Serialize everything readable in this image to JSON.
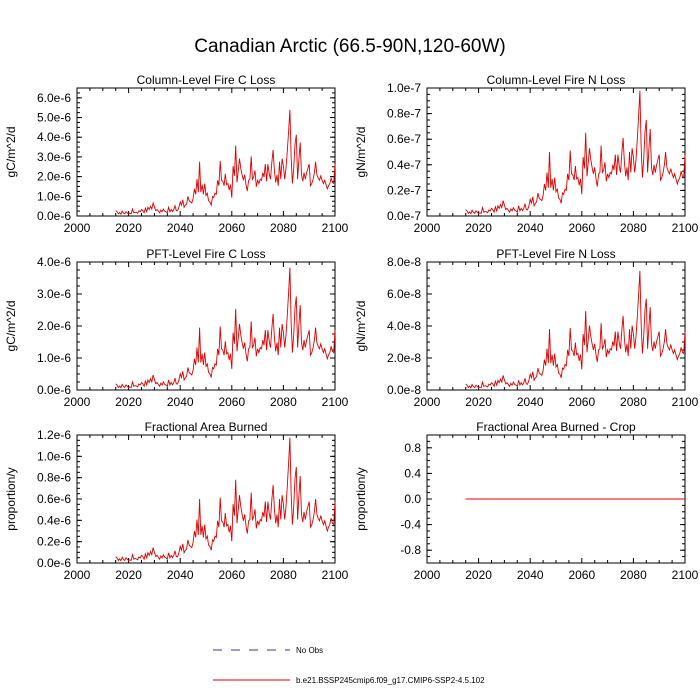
{
  "figure": {
    "title": "Canadian Arctic (66.5-90N,120-60W)",
    "legend": [
      {
        "label": "No Obs",
        "style": "dashed",
        "color": "#3a3a9a"
      },
      {
        "label": "b.e21.BSSP245cmip6.f09_g17.CMIP6-SSP2-4.5.102",
        "style": "solid",
        "color": "#dd0000"
      }
    ]
  },
  "chart_data": [
    {
      "type": "line",
      "title": "Column-Level Fire C Loss",
      "ylabel": "gC/m^2/d",
      "xlim": [
        2000,
        2100
      ],
      "xticks": [
        "2000",
        "2020",
        "2040",
        "2060",
        "2080",
        "2100"
      ],
      "ylim": [
        0,
        6.5e-06
      ],
      "yticks": [
        0,
        1e-06,
        2e-06,
        3e-06,
        4e-06,
        5e-06,
        6e-06
      ],
      "yticklabels": [
        "0.0e-6",
        "1.0e-6",
        "2.0e-6",
        "3.0e-6",
        "4.0e-6",
        "5.0e-6",
        "6.0e-6"
      ],
      "series": [
        {
          "color": "#dd0000",
          "start_year": 2015,
          "scale": 5.5e-06
        }
      ]
    },
    {
      "type": "line",
      "title": "Column-Level Fire N Loss",
      "ylabel": "gN/m^2/d",
      "xlim": [
        2000,
        2100
      ],
      "xticks": [
        "2000",
        "2020",
        "2040",
        "2060",
        "2080",
        "2100"
      ],
      "ylim": [
        0,
        1e-07
      ],
      "yticks": [
        0,
        2e-08,
        4e-08,
        6e-08,
        8e-08,
        1e-07
      ],
      "yticklabels": [
        "0.0e-7",
        "0.2e-7",
        "0.4e-7",
        "0.6e-7",
        "0.8e-7",
        "1.0e-7"
      ],
      "series": [
        {
          "color": "#dd0000",
          "start_year": 2015,
          "scale": 1e-07
        }
      ]
    },
    {
      "type": "line",
      "title": "PFT-Level Fire C Loss",
      "ylabel": "gC/m^2/d",
      "xlim": [
        2000,
        2100
      ],
      "xticks": [
        "2000",
        "2020",
        "2040",
        "2060",
        "2080",
        "2100"
      ],
      "ylim": [
        0,
        4e-06
      ],
      "yticks": [
        0,
        1e-06,
        2e-06,
        3e-06,
        4e-06
      ],
      "yticklabels": [
        "0.0e-6",
        "1.0e-6",
        "2.0e-6",
        "3.0e-6",
        "4.0e-6"
      ],
      "series": [
        {
          "color": "#dd0000",
          "start_year": 2015,
          "scale": 3.9e-06
        }
      ]
    },
    {
      "type": "line",
      "title": "PFT-Level Fire N Loss",
      "ylabel": "gN/m^2/d",
      "xlim": [
        2000,
        2100
      ],
      "xticks": [
        "2000",
        "2020",
        "2040",
        "2060",
        "2080",
        "2100"
      ],
      "ylim": [
        0,
        8e-08
      ],
      "yticks": [
        0,
        2e-08,
        4e-08,
        6e-08,
        8e-08
      ],
      "yticklabels": [
        "0.0e-8",
        "2.0e-8",
        "4.0e-8",
        "6.0e-8",
        "8.0e-8"
      ],
      "series": [
        {
          "color": "#dd0000",
          "start_year": 2015,
          "scale": 7.6e-08
        }
      ]
    },
    {
      "type": "line",
      "title": "Fractional Area Burned",
      "ylabel": "proportion/y",
      "xlim": [
        2000,
        2100
      ],
      "xticks": [
        "2000",
        "2020",
        "2040",
        "2060",
        "2080",
        "2100"
      ],
      "ylim": [
        0,
        1.2e-06
      ],
      "yticks": [
        0,
        2e-07,
        4e-07,
        6e-07,
        8e-07,
        1e-06,
        1.2e-06
      ],
      "yticklabels": [
        "0.0e-6",
        "0.2e-6",
        "0.4e-6",
        "0.6e-6",
        "0.8e-6",
        "1.0e-6",
        "1.2e-6"
      ],
      "series": [
        {
          "color": "#dd0000",
          "start_year": 2015,
          "scale": 1.2e-06
        }
      ]
    },
    {
      "type": "line",
      "title": "Fractional Area Burned - Crop",
      "ylabel": "proportion/y",
      "xlim": [
        2000,
        2100
      ],
      "xticks": [
        "2000",
        "2020",
        "2040",
        "2060",
        "2080",
        "2100"
      ],
      "ylim": [
        -1.0,
        1.0
      ],
      "yticks": [
        -0.8,
        -0.4,
        0,
        0.4,
        0.8
      ],
      "yticklabels": [
        "-0.8",
        "-0.4",
        "0.0",
        "0.4",
        "0.8"
      ],
      "series": [
        {
          "color": "#dd0000",
          "start_year": 2015,
          "flat_value": 0
        }
      ]
    }
  ],
  "shape": [
    0.05,
    0.04,
    0.02,
    0.032,
    0.018,
    0.045,
    0.028,
    0.02,
    0.04,
    0.03,
    0.018,
    0.025,
    0.02,
    0.065,
    0.03,
    0.035,
    0.032,
    0.025,
    0.048,
    0.04,
    0.06,
    0.05,
    0.03,
    0.072,
    0.04,
    0.08,
    0.06,
    0.09,
    0.065,
    0.12,
    0.085,
    0.05,
    0.06,
    0.045,
    0.03,
    0.055,
    0.04,
    0.065,
    0.045,
    0.04,
    0.03,
    0.08,
    0.04,
    0.06,
    0.042,
    0.06,
    0.095,
    0.05,
    0.048,
    0.08,
    0.13,
    0.1,
    0.15,
    0.08,
    0.1,
    0.11,
    0.18,
    0.14,
    0.13,
    0.12,
    0.16,
    0.25,
    0.2,
    0.34,
    0.22,
    0.5,
    0.22,
    0.29,
    0.2,
    0.3,
    0.19,
    0.21,
    0.14,
    0.13,
    0.1,
    0.18,
    0.17,
    0.21,
    0.2,
    0.33,
    0.28,
    0.51,
    0.33,
    0.32,
    0.28,
    0.39,
    0.29,
    0.3,
    0.24,
    0.29,
    0.17,
    0.46,
    0.37,
    0.65,
    0.31,
    0.42,
    0.53,
    0.44,
    0.38,
    0.33,
    0.38,
    0.29,
    0.23,
    0.33,
    0.34,
    0.55,
    0.34,
    0.36,
    0.42,
    0.27,
    0.33,
    0.3,
    0.34,
    0.33,
    0.4,
    0.36,
    0.48,
    0.32,
    0.48,
    0.39,
    0.34,
    0.49,
    0.61,
    0.42,
    0.31,
    0.38,
    0.28,
    0.5,
    0.34,
    0.53,
    0.46,
    0.34,
    0.44,
    0.6,
    0.78,
    0.98,
    0.55,
    0.3,
    0.44,
    0.66,
    0.75,
    0.34,
    0.52,
    0.68,
    0.38,
    0.32,
    0.4,
    0.34,
    0.4,
    0.44,
    0.48,
    0.28,
    0.3,
    0.34,
    0.4,
    0.5,
    0.38,
    0.35,
    0.33,
    0.37,
    0.33,
    0.3,
    0.33,
    0.29,
    0.25,
    0.28,
    0.3,
    0.35,
    0.31,
    0.3,
    0.48
  ]
}
